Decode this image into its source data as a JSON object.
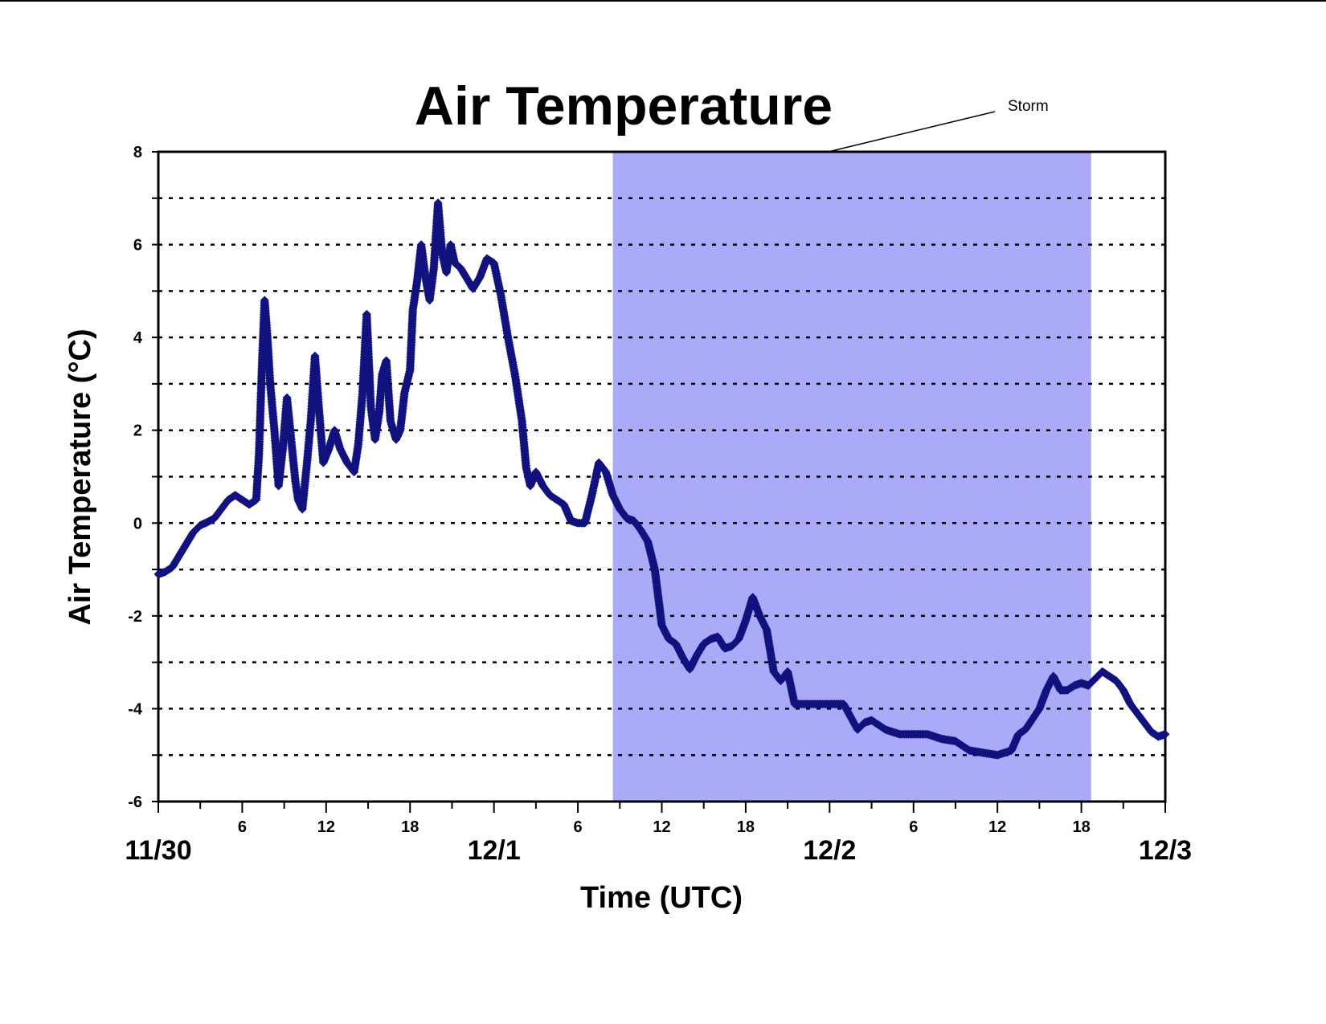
{
  "chart_data": {
    "type": "scatter",
    "title": "Air Temperature",
    "xlabel": "Time (UTC)",
    "ylabel": "Air Temperature (°C)",
    "x_units": "hours since 11/30 00 UTC",
    "xlim": [
      0,
      72
    ],
    "ylim": [
      -6,
      8
    ],
    "y_ticks": [
      "8",
      "6",
      "4",
      "2",
      "0",
      "-2",
      "-4",
      "-6"
    ],
    "x_hour_ticks": [
      {
        "h": 6,
        "label": "6"
      },
      {
        "h": 12,
        "label": "12"
      },
      {
        "h": 18,
        "label": "18"
      },
      {
        "h": 30,
        "label": "6"
      },
      {
        "h": 36,
        "label": "12"
      },
      {
        "h": 42,
        "label": "18"
      },
      {
        "h": 54,
        "label": "6"
      },
      {
        "h": 60,
        "label": "12"
      },
      {
        "h": 66,
        "label": "18"
      }
    ],
    "x_day_ticks": [
      {
        "h": 0,
        "label": "11/30"
      },
      {
        "h": 24,
        "label": "12/1"
      },
      {
        "h": 48,
        "label": "12/2"
      },
      {
        "h": 72,
        "label": "12/3"
      }
    ],
    "grid": "horizontal dotted at every 1 °C",
    "storm_period": {
      "start": 32.5,
      "end": 66.7,
      "label": "Storm",
      "color": "#aaaaf8"
    },
    "marker_color": "#12127e",
    "series": [
      {
        "name": "",
        "points": [
          [
            0,
            -1.1
          ],
          [
            0.5,
            -1.05
          ],
          [
            1,
            -0.95
          ],
          [
            1.5,
            -0.7
          ],
          [
            2,
            -0.45
          ],
          [
            2.5,
            -0.2
          ],
          [
            3,
            -0.05
          ],
          [
            3.5,
            0.02
          ],
          [
            4,
            0.1
          ],
          [
            4.5,
            0.3
          ],
          [
            5,
            0.5
          ],
          [
            5.5,
            0.6
          ],
          [
            6,
            0.5
          ],
          [
            6.5,
            0.4
          ],
          [
            7,
            0.5
          ],
          [
            7.2,
            1.5
          ],
          [
            7.4,
            3.3
          ],
          [
            7.6,
            4.8
          ],
          [
            7.8,
            4.0
          ],
          [
            8,
            3.0
          ],
          [
            8.3,
            2.0
          ],
          [
            8.6,
            0.8
          ],
          [
            8.9,
            1.6
          ],
          [
            9.2,
            2.7
          ],
          [
            9.5,
            1.8
          ],
          [
            9.8,
            0.9
          ],
          [
            10,
            0.5
          ],
          [
            10.3,
            0.3
          ],
          [
            10.6,
            1.2
          ],
          [
            10.9,
            2.2
          ],
          [
            11.2,
            3.6
          ],
          [
            11.5,
            2.4
          ],
          [
            11.8,
            1.3
          ],
          [
            12.2,
            1.6
          ],
          [
            12.6,
            2.0
          ],
          [
            13,
            1.6
          ],
          [
            13.5,
            1.3
          ],
          [
            14,
            1.1
          ],
          [
            14.3,
            1.7
          ],
          [
            14.6,
            2.8
          ],
          [
            14.9,
            4.5
          ],
          [
            15.2,
            2.5
          ],
          [
            15.5,
            1.8
          ],
          [
            15.8,
            2.4
          ],
          [
            16,
            3.2
          ],
          [
            16.3,
            3.5
          ],
          [
            16.6,
            2.2
          ],
          [
            17,
            1.8
          ],
          [
            17.3,
            2.0
          ],
          [
            17.6,
            2.8
          ],
          [
            18,
            3.3
          ],
          [
            18.2,
            4.6
          ],
          [
            18.5,
            5.2
          ],
          [
            18.8,
            6.0
          ],
          [
            19.1,
            5.3
          ],
          [
            19.4,
            4.8
          ],
          [
            19.7,
            5.5
          ],
          [
            20,
            6.9
          ],
          [
            20.3,
            5.8
          ],
          [
            20.6,
            5.4
          ],
          [
            20.9,
            6.0
          ],
          [
            21.2,
            5.6
          ],
          [
            21.6,
            5.5
          ],
          [
            22,
            5.3
          ],
          [
            22.5,
            5.05
          ],
          [
            23,
            5.3
          ],
          [
            23.5,
            5.7
          ],
          [
            24,
            5.6
          ],
          [
            24.5,
            4.9
          ],
          [
            25,
            4.0
          ],
          [
            25.5,
            3.2
          ],
          [
            26,
            2.2
          ],
          [
            26.3,
            1.2
          ],
          [
            26.6,
            0.8
          ],
          [
            27,
            1.1
          ],
          [
            27.5,
            0.8
          ],
          [
            28,
            0.6
          ],
          [
            28.5,
            0.5
          ],
          [
            29,
            0.4
          ],
          [
            29.5,
            0.05
          ],
          [
            30,
            0.0
          ],
          [
            30.5,
            0.0
          ],
          [
            31,
            0.6
          ],
          [
            31.5,
            1.3
          ],
          [
            32,
            1.1
          ],
          [
            32.5,
            0.6
          ],
          [
            33,
            0.3
          ],
          [
            33.5,
            0.1
          ],
          [
            34,
            0.05
          ],
          [
            34.5,
            -0.15
          ],
          [
            35,
            -0.4
          ],
          [
            35.5,
            -1.0
          ],
          [
            36,
            -2.2
          ],
          [
            36.5,
            -2.5
          ],
          [
            37,
            -2.6
          ],
          [
            37.5,
            -2.9
          ],
          [
            38,
            -3.15
          ],
          [
            38.5,
            -2.85
          ],
          [
            39,
            -2.6
          ],
          [
            39.5,
            -2.5
          ],
          [
            40,
            -2.45
          ],
          [
            40.5,
            -2.7
          ],
          [
            41,
            -2.65
          ],
          [
            41.5,
            -2.5
          ],
          [
            42,
            -2.1
          ],
          [
            42.5,
            -1.6
          ],
          [
            43,
            -2.0
          ],
          [
            43.5,
            -2.3
          ],
          [
            44,
            -3.2
          ],
          [
            44.5,
            -3.4
          ],
          [
            45,
            -3.2
          ],
          [
            45.5,
            -3.9
          ],
          [
            46,
            -3.9
          ],
          [
            47,
            -3.9
          ],
          [
            48,
            -3.9
          ],
          [
            49,
            -3.9
          ],
          [
            50,
            -4.45
          ],
          [
            50.5,
            -4.3
          ],
          [
            51,
            -4.25
          ],
          [
            51.5,
            -4.35
          ],
          [
            52,
            -4.45
          ],
          [
            53,
            -4.55
          ],
          [
            54,
            -4.55
          ],
          [
            55,
            -4.55
          ],
          [
            56,
            -4.65
          ],
          [
            57,
            -4.7
          ],
          [
            58,
            -4.9
          ],
          [
            59,
            -4.95
          ],
          [
            60,
            -5.0
          ],
          [
            61,
            -4.9
          ],
          [
            61.5,
            -4.55
          ],
          [
            62,
            -4.45
          ],
          [
            63,
            -4.0
          ],
          [
            63.5,
            -3.6
          ],
          [
            64,
            -3.3
          ],
          [
            64.5,
            -3.6
          ],
          [
            65,
            -3.6
          ],
          [
            65.5,
            -3.5
          ],
          [
            66,
            -3.45
          ],
          [
            66.5,
            -3.5
          ],
          [
            67,
            -3.35
          ],
          [
            67.5,
            -3.2
          ],
          [
            68,
            -3.3
          ],
          [
            68.5,
            -3.4
          ],
          [
            69,
            -3.6
          ],
          [
            69.5,
            -3.9
          ],
          [
            70,
            -4.1
          ],
          [
            70.5,
            -4.3
          ],
          [
            71,
            -4.5
          ],
          [
            71.5,
            -4.6
          ],
          [
            72,
            -4.55
          ]
        ]
      }
    ]
  }
}
